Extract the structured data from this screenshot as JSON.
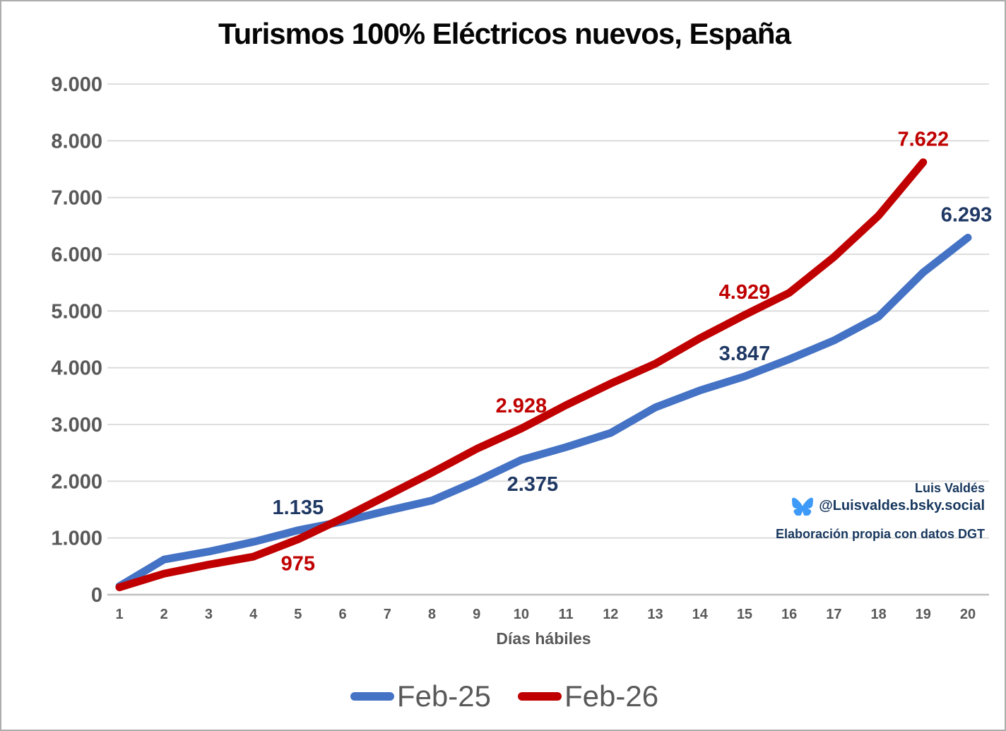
{
  "attribution": {
    "author": "Luis Valdés",
    "handle": "@Luisvaldes.bsky.social",
    "source_note": "Elaboración propia con datos DGT",
    "text_color": "#17375E",
    "butterfly_color": "#3D9AF8"
  },
  "chart_data": {
    "type": "line",
    "title": "Turismos 100% Eléctricos nuevos, España",
    "xlabel": "Días hábiles",
    "x": [
      1,
      2,
      3,
      4,
      5,
      6,
      7,
      8,
      9,
      10,
      11,
      12,
      13,
      14,
      15,
      16,
      17,
      18,
      19,
      20
    ],
    "ylim": [
      0,
      9000
    ],
    "ytick_step": 1000,
    "ytick_labels": [
      "0",
      "1.000",
      "2.000",
      "3.000",
      "4.000",
      "5.000",
      "6.000",
      "7.000",
      "8.000",
      "9.000"
    ],
    "grid": true,
    "legend_position": "bottom",
    "axis_text_color": "#595959",
    "gridline_color": "#D9D9D9",
    "axisline_color": "#BFBFBF",
    "series": [
      {
        "name": "Feb-25",
        "color": "#4472C4",
        "label_color": "#1F3864",
        "values": [
          150,
          620,
          760,
          930,
          1135,
          1290,
          1480,
          1660,
          2000,
          2375,
          2600,
          2850,
          3300,
          3600,
          3847,
          4150,
          4480,
          4900,
          5680,
          6293
        ],
        "labeled_points": [
          {
            "day": 5,
            "value": 1135,
            "text": "1.135",
            "pos": "above",
            "dx": 0
          },
          {
            "day": 10,
            "value": 2375,
            "text": "2.375",
            "pos": "below",
            "dx": 16
          },
          {
            "day": 15,
            "value": 3847,
            "text": "3.847",
            "pos": "above",
            "dx": 0
          },
          {
            "day": 20,
            "value": 6293,
            "text": "6.293",
            "pos": "above",
            "dx": -2
          }
        ]
      },
      {
        "name": "Feb-26",
        "color": "#C00000",
        "label_color": "#C00000",
        "values": [
          130,
          370,
          530,
          670,
          975,
          1350,
          1750,
          2150,
          2570,
          2928,
          3340,
          3720,
          4070,
          4520,
          4929,
          5320,
          5950,
          6680,
          7622
        ],
        "labeled_points": [
          {
            "day": 5,
            "value": 975,
            "text": "975",
            "pos": "below",
            "dx": 0
          },
          {
            "day": 10,
            "value": 2928,
            "text": "2.928",
            "pos": "above",
            "dx": 0
          },
          {
            "day": 15,
            "value": 4929,
            "text": "4.929",
            "pos": "above",
            "dx": 0
          },
          {
            "day": 19,
            "value": 7622,
            "text": "7.622",
            "pos": "above",
            "dx": 0
          }
        ]
      }
    ]
  }
}
